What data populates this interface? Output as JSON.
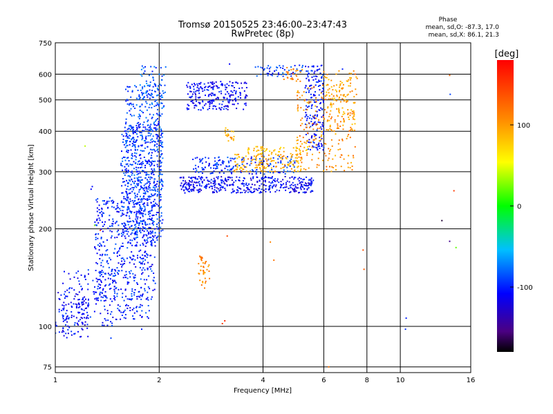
{
  "chart_data": {
    "type": "scatter",
    "title": "Tromsø 20150525 23:46:00–23:47:43",
    "subtitle": "RwPretec (8p)",
    "xlabel": "Frequency [MHz]",
    "ylabel": "Stationary phase Virtual Height [km]",
    "x_scale": "log",
    "y_scale": "log",
    "xlim": [
      1,
      16
    ],
    "ylim": [
      72,
      750
    ],
    "x_ticks": [
      1,
      2,
      4,
      6,
      8,
      10,
      16
    ],
    "y_ticks": [
      75,
      100,
      200,
      300,
      400,
      500,
      600,
      750
    ],
    "grid": true,
    "stats": {
      "title": "Phase",
      "o_line": "mean, sd,O: -87.3, 17.0",
      "x_line": "mean, sd,X: 86.1, 21.3"
    },
    "colorbar": {
      "label": "[deg]",
      "range": [
        -180,
        180
      ],
      "ticks": [
        -100,
        0,
        100
      ]
    },
    "clusters": [
      {
        "x": [
          1.0,
          1.25
        ],
        "y": [
          92,
          130
        ],
        "phase": -110,
        "n": 110
      },
      {
        "x": [
          1.05,
          1.5
        ],
        "y": [
          100,
          150
        ],
        "phase": -105,
        "n": 120
      },
      {
        "x": [
          1.5,
          1.9
        ],
        "y": [
          105,
          118
        ],
        "phase": -100,
        "n": 45
      },
      {
        "x": [
          1.3,
          1.95
        ],
        "y": [
          120,
          250
        ],
        "phase": -100,
        "n": 520
      },
      {
        "x": [
          1.55,
          2.05
        ],
        "y": [
          180,
          420
        ],
        "phase": -95,
        "n": 480
      },
      {
        "x": [
          1.6,
          2.05
        ],
        "y": [
          250,
          560
        ],
        "phase": -90,
        "n": 320
      },
      {
        "x": [
          1.75,
          2.1
        ],
        "y": [
          470,
          640
        ],
        "phase": -85,
        "n": 80
      },
      {
        "x": [
          2.3,
          5.6
        ],
        "y": [
          258,
          290
        ],
        "phase": -110,
        "n": 420
      },
      {
        "x": [
          2.5,
          5.0
        ],
        "y": [
          295,
          335
        ],
        "phase": -95,
        "n": 170
      },
      {
        "x": [
          2.4,
          3.6
        ],
        "y": [
          465,
          570
        ],
        "phase": -110,
        "n": 230
      },
      {
        "x": [
          3.8,
          5.4
        ],
        "y": [
          590,
          640
        ],
        "phase": -95,
        "n": 50
      },
      {
        "x": [
          5.3,
          6.0
        ],
        "y": [
          350,
          640
        ],
        "phase": -105,
        "n": 190
      },
      {
        "x": [
          3.3,
          5.2
        ],
        "y": [
          300,
          340
        ],
        "phase": 95,
        "n": 150
      },
      {
        "x": [
          3.6,
          5.4
        ],
        "y": [
          340,
          360
        ],
        "phase": 80,
        "n": 50
      },
      {
        "x": [
          5.0,
          7.4
        ],
        "y": [
          300,
          560
        ],
        "phase": 105,
        "n": 210
      },
      {
        "x": [
          6.0,
          7.5
        ],
        "y": [
          400,
          620
        ],
        "phase": 95,
        "n": 110
      },
      {
        "x": [
          2.6,
          2.8
        ],
        "y": [
          130,
          165
        ],
        "phase": 110,
        "n": 40
      },
      {
        "x": [
          3.1,
          3.3
        ],
        "y": [
          370,
          410
        ],
        "phase": 95,
        "n": 20
      },
      {
        "x": [
          4.6,
          5.2
        ],
        "y": [
          570,
          630
        ],
        "phase": 115,
        "n": 25
      }
    ],
    "points": [
      {
        "x": 1.27,
        "y": 265,
        "phase": -110
      },
      {
        "x": 1.28,
        "y": 270,
        "phase": -105
      },
      {
        "x": 1.45,
        "y": 92,
        "phase": -90
      },
      {
        "x": 1.78,
        "y": 98,
        "phase": -100
      },
      {
        "x": 1.22,
        "y": 360,
        "phase": 40
      },
      {
        "x": 1.3,
        "y": 205,
        "phase": 30
      },
      {
        "x": 1.35,
        "y": 198,
        "phase": 160
      },
      {
        "x": 3.05,
        "y": 102,
        "phase": 150
      },
      {
        "x": 3.1,
        "y": 104,
        "phase": 160
      },
      {
        "x": 3.15,
        "y": 190,
        "phase": 140
      },
      {
        "x": 3.2,
        "y": 645,
        "phase": -110
      },
      {
        "x": 4.2,
        "y": 182,
        "phase": 110
      },
      {
        "x": 4.3,
        "y": 160,
        "phase": 120
      },
      {
        "x": 6.2,
        "y": 75,
        "phase": 120
      },
      {
        "x": 7.8,
        "y": 172,
        "phase": 140
      },
      {
        "x": 7.85,
        "y": 150,
        "phase": 130
      },
      {
        "x": 10.4,
        "y": 106,
        "phase": -100
      },
      {
        "x": 10.35,
        "y": 98,
        "phase": -95
      },
      {
        "x": 13.2,
        "y": 212,
        "phase": -170
      },
      {
        "x": 13.9,
        "y": 183,
        "phase": -150
      },
      {
        "x": 14.5,
        "y": 175,
        "phase": 20
      },
      {
        "x": 13.9,
        "y": 595,
        "phase": 130
      },
      {
        "x": 13.95,
        "y": 520,
        "phase": -90
      },
      {
        "x": 14.3,
        "y": 262,
        "phase": 150
      },
      {
        "x": 6.8,
        "y": 622,
        "phase": -100
      },
      {
        "x": 7.4,
        "y": 600,
        "phase": 130
      }
    ]
  }
}
